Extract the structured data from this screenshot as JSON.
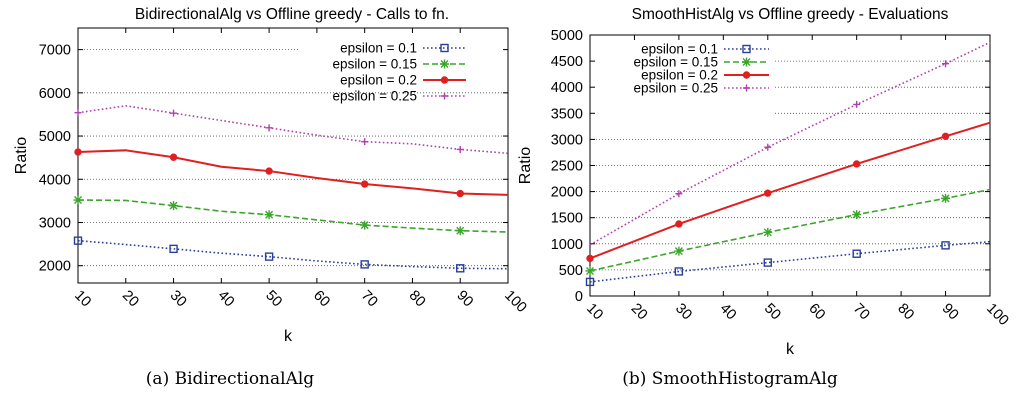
{
  "chart_data": [
    {
      "type": "line",
      "title": "BidirectionalAlg vs Offline greedy - Calls to fn.",
      "xlabel": "k",
      "ylabel": "Ratio",
      "xlim": [
        10,
        100
      ],
      "ylim": [
        1600,
        7500
      ],
      "xticks": [
        10,
        20,
        30,
        40,
        50,
        60,
        70,
        80,
        90,
        100
      ],
      "yticks": [
        2000,
        3000,
        4000,
        5000,
        6000,
        7000
      ],
      "grid": "horizontal dotted",
      "legend_position": "top-right",
      "series": [
        {
          "name": "epsilon = 0.1",
          "color": "#2a3f9a",
          "dash": "dotted",
          "marker": "square",
          "x": [
            10,
            20,
            30,
            40,
            50,
            60,
            70,
            80,
            90,
            100
          ],
          "values": [
            2580,
            2490,
            2390,
            2290,
            2210,
            2110,
            2030,
            1980,
            1940,
            1930
          ],
          "marker_x": [
            10,
            30,
            50,
            70,
            90
          ]
        },
        {
          "name": "epsilon = 0.15",
          "color": "#3aa62a",
          "dash": "dashed",
          "marker": "x",
          "x": [
            10,
            20,
            30,
            40,
            50,
            60,
            70,
            80,
            90,
            100
          ],
          "values": [
            3520,
            3510,
            3390,
            3260,
            3180,
            3060,
            2940,
            2870,
            2810,
            2780
          ],
          "marker_x": [
            10,
            30,
            50,
            70,
            90
          ]
        },
        {
          "name": "epsilon = 0.2",
          "color": "#e02020",
          "dash": "solid",
          "marker": "circle",
          "x": [
            10,
            20,
            30,
            40,
            50,
            60,
            70,
            80,
            90,
            100
          ],
          "values": [
            4630,
            4670,
            4510,
            4290,
            4190,
            4030,
            3890,
            3790,
            3670,
            3640
          ],
          "marker_x": [
            10,
            30,
            50,
            70,
            90
          ]
        },
        {
          "name": "epsilon = 0.25",
          "color": "#b040b0",
          "dash": "dotted",
          "marker": "plus",
          "x": [
            10,
            20,
            30,
            40,
            50,
            60,
            70,
            80,
            90,
            100
          ],
          "values": [
            5540,
            5700,
            5530,
            5360,
            5190,
            5020,
            4870,
            4820,
            4690,
            4600
          ],
          "marker_x": [
            10,
            30,
            50,
            70,
            90
          ]
        }
      ],
      "caption": "(a)  BidirectionalAlg"
    },
    {
      "type": "line",
      "title": "SmoothHistAlg vs Offline greedy - Evaluations",
      "xlabel": "k",
      "ylabel": "Ratio",
      "xlim": [
        10,
        100
      ],
      "ylim": [
        0,
        5000
      ],
      "xticks": [
        10,
        20,
        30,
        40,
        50,
        60,
        70,
        80,
        90,
        100
      ],
      "yticks": [
        0,
        500,
        1000,
        1500,
        2000,
        2500,
        3000,
        3500,
        4000,
        4500,
        5000
      ],
      "grid": "horizontal dotted",
      "legend_position": "top-left",
      "series": [
        {
          "name": "epsilon = 0.1",
          "color": "#2a3f9a",
          "dash": "dotted",
          "marker": "square",
          "x": [
            10,
            30,
            50,
            70,
            90,
            100
          ],
          "values": [
            270,
            470,
            640,
            810,
            970,
            1040
          ],
          "marker_x": [
            10,
            30,
            50,
            70,
            90
          ]
        },
        {
          "name": "epsilon = 0.15",
          "color": "#3aa62a",
          "dash": "dashed",
          "marker": "x",
          "x": [
            10,
            30,
            50,
            70,
            90,
            100
          ],
          "values": [
            480,
            860,
            1220,
            1560,
            1870,
            2040
          ],
          "marker_x": [
            10,
            30,
            50,
            70,
            90
          ]
        },
        {
          "name": "epsilon = 0.2",
          "color": "#e02020",
          "dash": "solid",
          "marker": "circle",
          "x": [
            10,
            30,
            50,
            70,
            90,
            100
          ],
          "values": [
            720,
            1380,
            1970,
            2530,
            3060,
            3320
          ],
          "marker_x": [
            10,
            30,
            50,
            70,
            90
          ]
        },
        {
          "name": "epsilon = 0.25",
          "color": "#b040b0",
          "dash": "dotted",
          "marker": "plus",
          "x": [
            10,
            30,
            50,
            70,
            90,
            100
          ],
          "values": [
            980,
            1960,
            2850,
            3670,
            4450,
            4860
          ],
          "marker_x": [
            30,
            50,
            70,
            90
          ]
        }
      ],
      "caption": "(b)  SmoothHistogramAlg"
    }
  ]
}
